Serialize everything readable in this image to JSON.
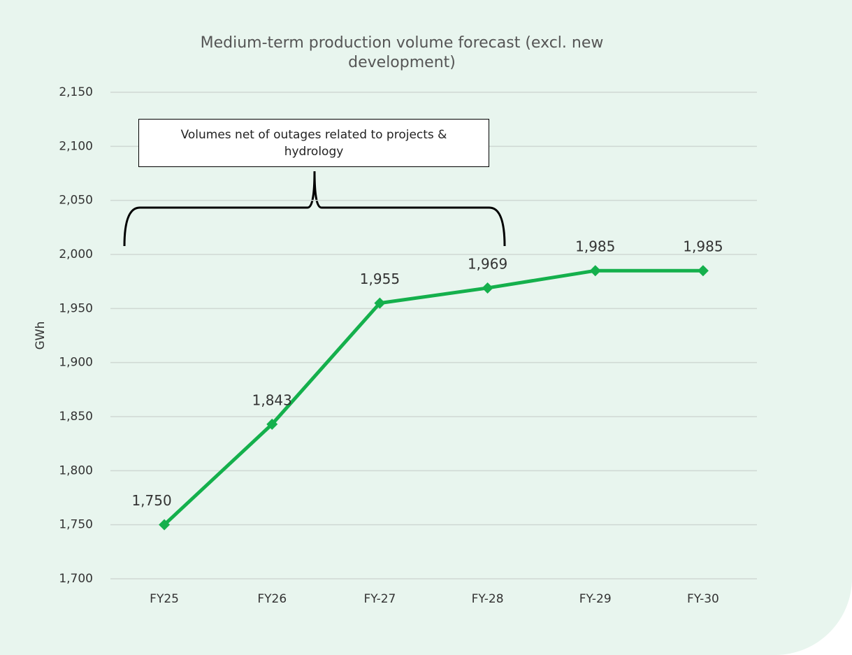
{
  "chart_data": {
    "type": "line",
    "title": "Medium-term production volume forecast (excl. new development)",
    "y_axis_label": "GWh",
    "annotation": "Volumes net of outages related to projects & hydrology",
    "categories": [
      "FY25",
      "FY26",
      "FY-27",
      "FY-28",
      "FY-29",
      "FY-30"
    ],
    "series": [
      {
        "name": "Production volume",
        "color": "#14b04c",
        "values": [
          1750,
          1843,
          1955,
          1969,
          1985,
          1985
        ],
        "value_labels": [
          "1,750",
          "1,843",
          "1,955",
          "1,969",
          "1,985",
          "1,985"
        ]
      }
    ],
    "ylim": [
      1700,
      2150
    ],
    "yticks": [
      {
        "value": 1700,
        "label": "1,700"
      },
      {
        "value": 1750,
        "label": "1,750"
      },
      {
        "value": 1800,
        "label": "1,800"
      },
      {
        "value": 1850,
        "label": "1,850"
      },
      {
        "value": 1900,
        "label": "1,900"
      },
      {
        "value": 1950,
        "label": "1,950"
      },
      {
        "value": 2000,
        "label": "2,000"
      },
      {
        "value": 2050,
        "label": "2,050"
      },
      {
        "value": 2100,
        "label": "2,100"
      },
      {
        "value": 2150,
        "label": "2,150"
      }
    ],
    "grid": true,
    "legend": false
  }
}
